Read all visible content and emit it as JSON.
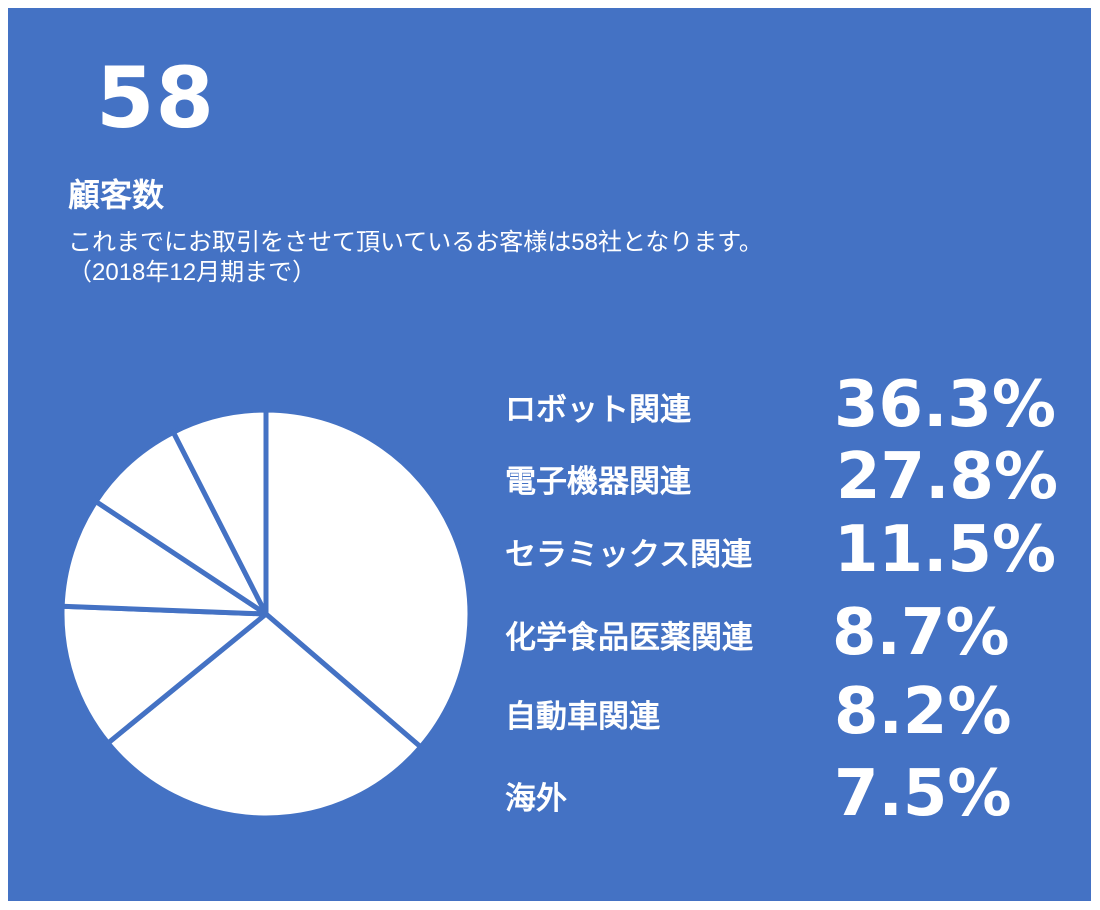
{
  "customers": {
    "count": "58",
    "heading": "顧客数",
    "description_line1": "これまでにお取引をさせて頂いているお客様は58社となります。",
    "description_line2": "（2018年12月期まで）"
  },
  "colors": {
    "background": "#4472c4",
    "slice_fill": "#ffffff",
    "slice_stroke": "#4472c4",
    "text": "#ffffff"
  },
  "chart_data": {
    "type": "pie",
    "title": "",
    "categories": [
      "ロボット関連",
      "電子機器関連",
      "セラミックス関連",
      "化学食品医薬関連",
      "自動車関連",
      "海外"
    ],
    "values": [
      36.3,
      27.8,
      11.5,
      8.7,
      8.2,
      7.5
    ],
    "value_labels": [
      "36.3%",
      "27.8%",
      "11.5%",
      "8.7%",
      "8.2%",
      "7.5%"
    ],
    "legend_placement": "right"
  }
}
